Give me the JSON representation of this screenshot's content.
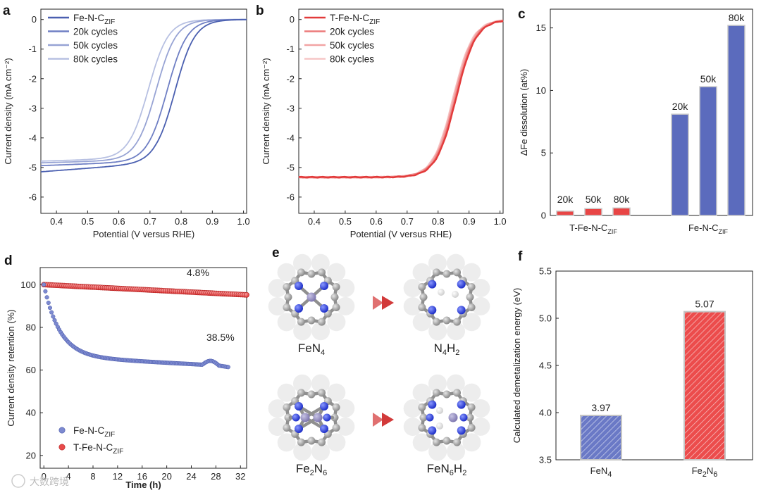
{
  "colors": {
    "blue_dark": "#4a5fb0",
    "blue_mid": "#6f7fc4",
    "blue_light": "#97a3d4",
    "blue_pale": "#b7c0e2",
    "red_dark": "#e23a3a",
    "red_mid": "#ec7a7a",
    "red_light": "#f2a4a4",
    "red_pale": "#f6c6c6",
    "bar_blue": "#5b6bbd",
    "bar_red": "#e84545",
    "nitrogen": "#2b3fd8",
    "carbon": "#9a9a9a",
    "iron": "#8e88b8",
    "hydrogen": "#e8e8e8",
    "arrow": "#d23a3a"
  },
  "watermark": "大数跨境",
  "chart_data": [
    {
      "panel": "a",
      "type": "line",
      "xlabel": "Potential (V versus RHE)",
      "ylabel": "Current density (mA cm⁻²)",
      "xlim": [
        0.35,
        1.01
      ],
      "ylim": [
        -6.55,
        0.35
      ],
      "xticks": [
        "0.4",
        "0.5",
        "0.6",
        "0.7",
        "0.8",
        "0.9",
        "1.0"
      ],
      "yticks": [
        "0",
        "-1",
        "-2",
        "-3",
        "-4",
        "-5",
        "-6"
      ],
      "legend": [
        "Fe-N-C_ZIF",
        "20k cycles",
        "50k cycles",
        "80k cycles"
      ],
      "series": [
        {
          "name": "Fe-N-C_ZIF",
          "e_half": 0.78,
          "limit": -4.85,
          "slope": -0.8
        },
        {
          "name": "20k cycles",
          "e_half": 0.755,
          "limit": -4.8,
          "slope": -0.4
        },
        {
          "name": "50k cycles",
          "e_half": 0.72,
          "limit": -4.75,
          "slope": -0.3
        },
        {
          "name": "80k cycles",
          "e_half": 0.695,
          "limit": -4.7,
          "slope": -0.3
        }
      ]
    },
    {
      "panel": "b",
      "type": "line",
      "xlabel": "Potential (V versus RHE)",
      "ylabel": "Current density (mA cm⁻²)",
      "xlim": [
        0.35,
        1.01
      ],
      "ylim": [
        -6.55,
        0.35
      ],
      "xticks": [
        "0.4",
        "0.5",
        "0.6",
        "0.7",
        "0.8",
        "0.9",
        "1.0"
      ],
      "yticks": [
        "0",
        "-1",
        "-2",
        "-3",
        "-4",
        "-5",
        "-6"
      ],
      "legend": [
        "T-Fe-N-C_ZIF",
        "20k cycles",
        "50k cycles",
        "80k cycles"
      ],
      "series": [
        {
          "name": "T-Fe-N-C_ZIF",
          "e_half": 0.858,
          "limit": -5.33
        },
        {
          "name": "20k cycles",
          "e_half": 0.855,
          "limit": -5.33
        },
        {
          "name": "50k cycles",
          "e_half": 0.851,
          "limit": -5.33
        },
        {
          "name": "80k cycles",
          "e_half": 0.848,
          "limit": -5.33
        }
      ]
    },
    {
      "panel": "c",
      "type": "bar",
      "ylabel": "ΔFe dissolution (at%)",
      "ylim": [
        0,
        16.5
      ],
      "yticks": [
        "0",
        "5",
        "10",
        "15"
      ],
      "groups": [
        "T-Fe-N-C_ZIF",
        "Fe-N-C_ZIF"
      ],
      "series": [
        {
          "group": "T-Fe-N-C_ZIF",
          "labels": [
            "20k",
            "50k",
            "80k"
          ],
          "values": [
            0.35,
            0.55,
            0.6
          ]
        },
        {
          "group": "Fe-N-C_ZIF",
          "labels": [
            "20k",
            "50k",
            "80k"
          ],
          "values": [
            8.1,
            10.3,
            15.2
          ]
        }
      ]
    },
    {
      "panel": "d",
      "type": "scatter",
      "xlabel": "Time (h)",
      "ylabel": "Current density retention (%)",
      "xlim": [
        -0.6,
        33
      ],
      "ylim": [
        14,
        108
      ],
      "xticks": [
        "0",
        "4",
        "8",
        "12",
        "16",
        "20",
        "24",
        "28",
        "32"
      ],
      "yticks": [
        "20",
        "40",
        "60",
        "80",
        "100"
      ],
      "legend": [
        "Fe-N-C_ZIF",
        "T-Fe-N-C_ZIF"
      ],
      "annotations": [
        "4.8%",
        "38.5%"
      ],
      "series": [
        {
          "name": "Fe-N-C_ZIF",
          "start": 100,
          "end": 61.5,
          "t_end": 30
        },
        {
          "name": "T-Fe-N-C_ZIF",
          "start": 100,
          "end": 95.2,
          "t_end": 33
        }
      ]
    },
    {
      "panel": "f",
      "type": "bar",
      "ylabel": "Calculated demetalization energy (eV)",
      "ylim": [
        3.5,
        5.5
      ],
      "yticks": [
        "3.5",
        "4.0",
        "4.5",
        "5.0",
        "5.5"
      ],
      "categories": [
        "FeN4",
        "Fe2N6"
      ],
      "values": [
        3.97,
        5.07
      ],
      "value_labels": [
        "3.97",
        "5.07"
      ]
    }
  ],
  "panel_e": {
    "structures": [
      "FeN4",
      "N4H2",
      "Fe2N6",
      "FeN6H2"
    ]
  }
}
